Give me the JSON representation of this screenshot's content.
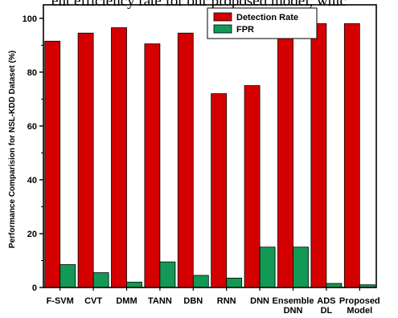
{
  "caption_fragment": "ent efficiency rate for our proposed model, whic",
  "chart_data": {
    "type": "bar",
    "categories": [
      [
        "F-SVM"
      ],
      [
        "CVT"
      ],
      [
        "DMM"
      ],
      [
        "TANN"
      ],
      [
        "DBN"
      ],
      [
        "RNN"
      ],
      [
        "DNN"
      ],
      [
        "Ensemble",
        "DNN"
      ],
      [
        "ADS",
        "DL"
      ],
      [
        "Proposed",
        "Model"
      ]
    ],
    "series": [
      {
        "name": "Detection Rate",
        "color": "#d40000",
        "values": [
          91.5,
          94.5,
          96.5,
          90.5,
          94.5,
          72.0,
          75.0,
          97.0,
          98.0,
          98.0
        ]
      },
      {
        "name": "FPR",
        "color": "#119955",
        "values": [
          8.5,
          5.5,
          2.0,
          9.5,
          4.5,
          3.5,
          15.0,
          15.0,
          1.5,
          1.0
        ]
      }
    ],
    "ylabel": "Performance Comparision for NSL-KDD Dataset (%)",
    "ylim": [
      0,
      105
    ],
    "yticks": [
      0,
      20,
      40,
      60,
      80,
      100
    ],
    "grid": false,
    "legend_position": "top-right"
  }
}
